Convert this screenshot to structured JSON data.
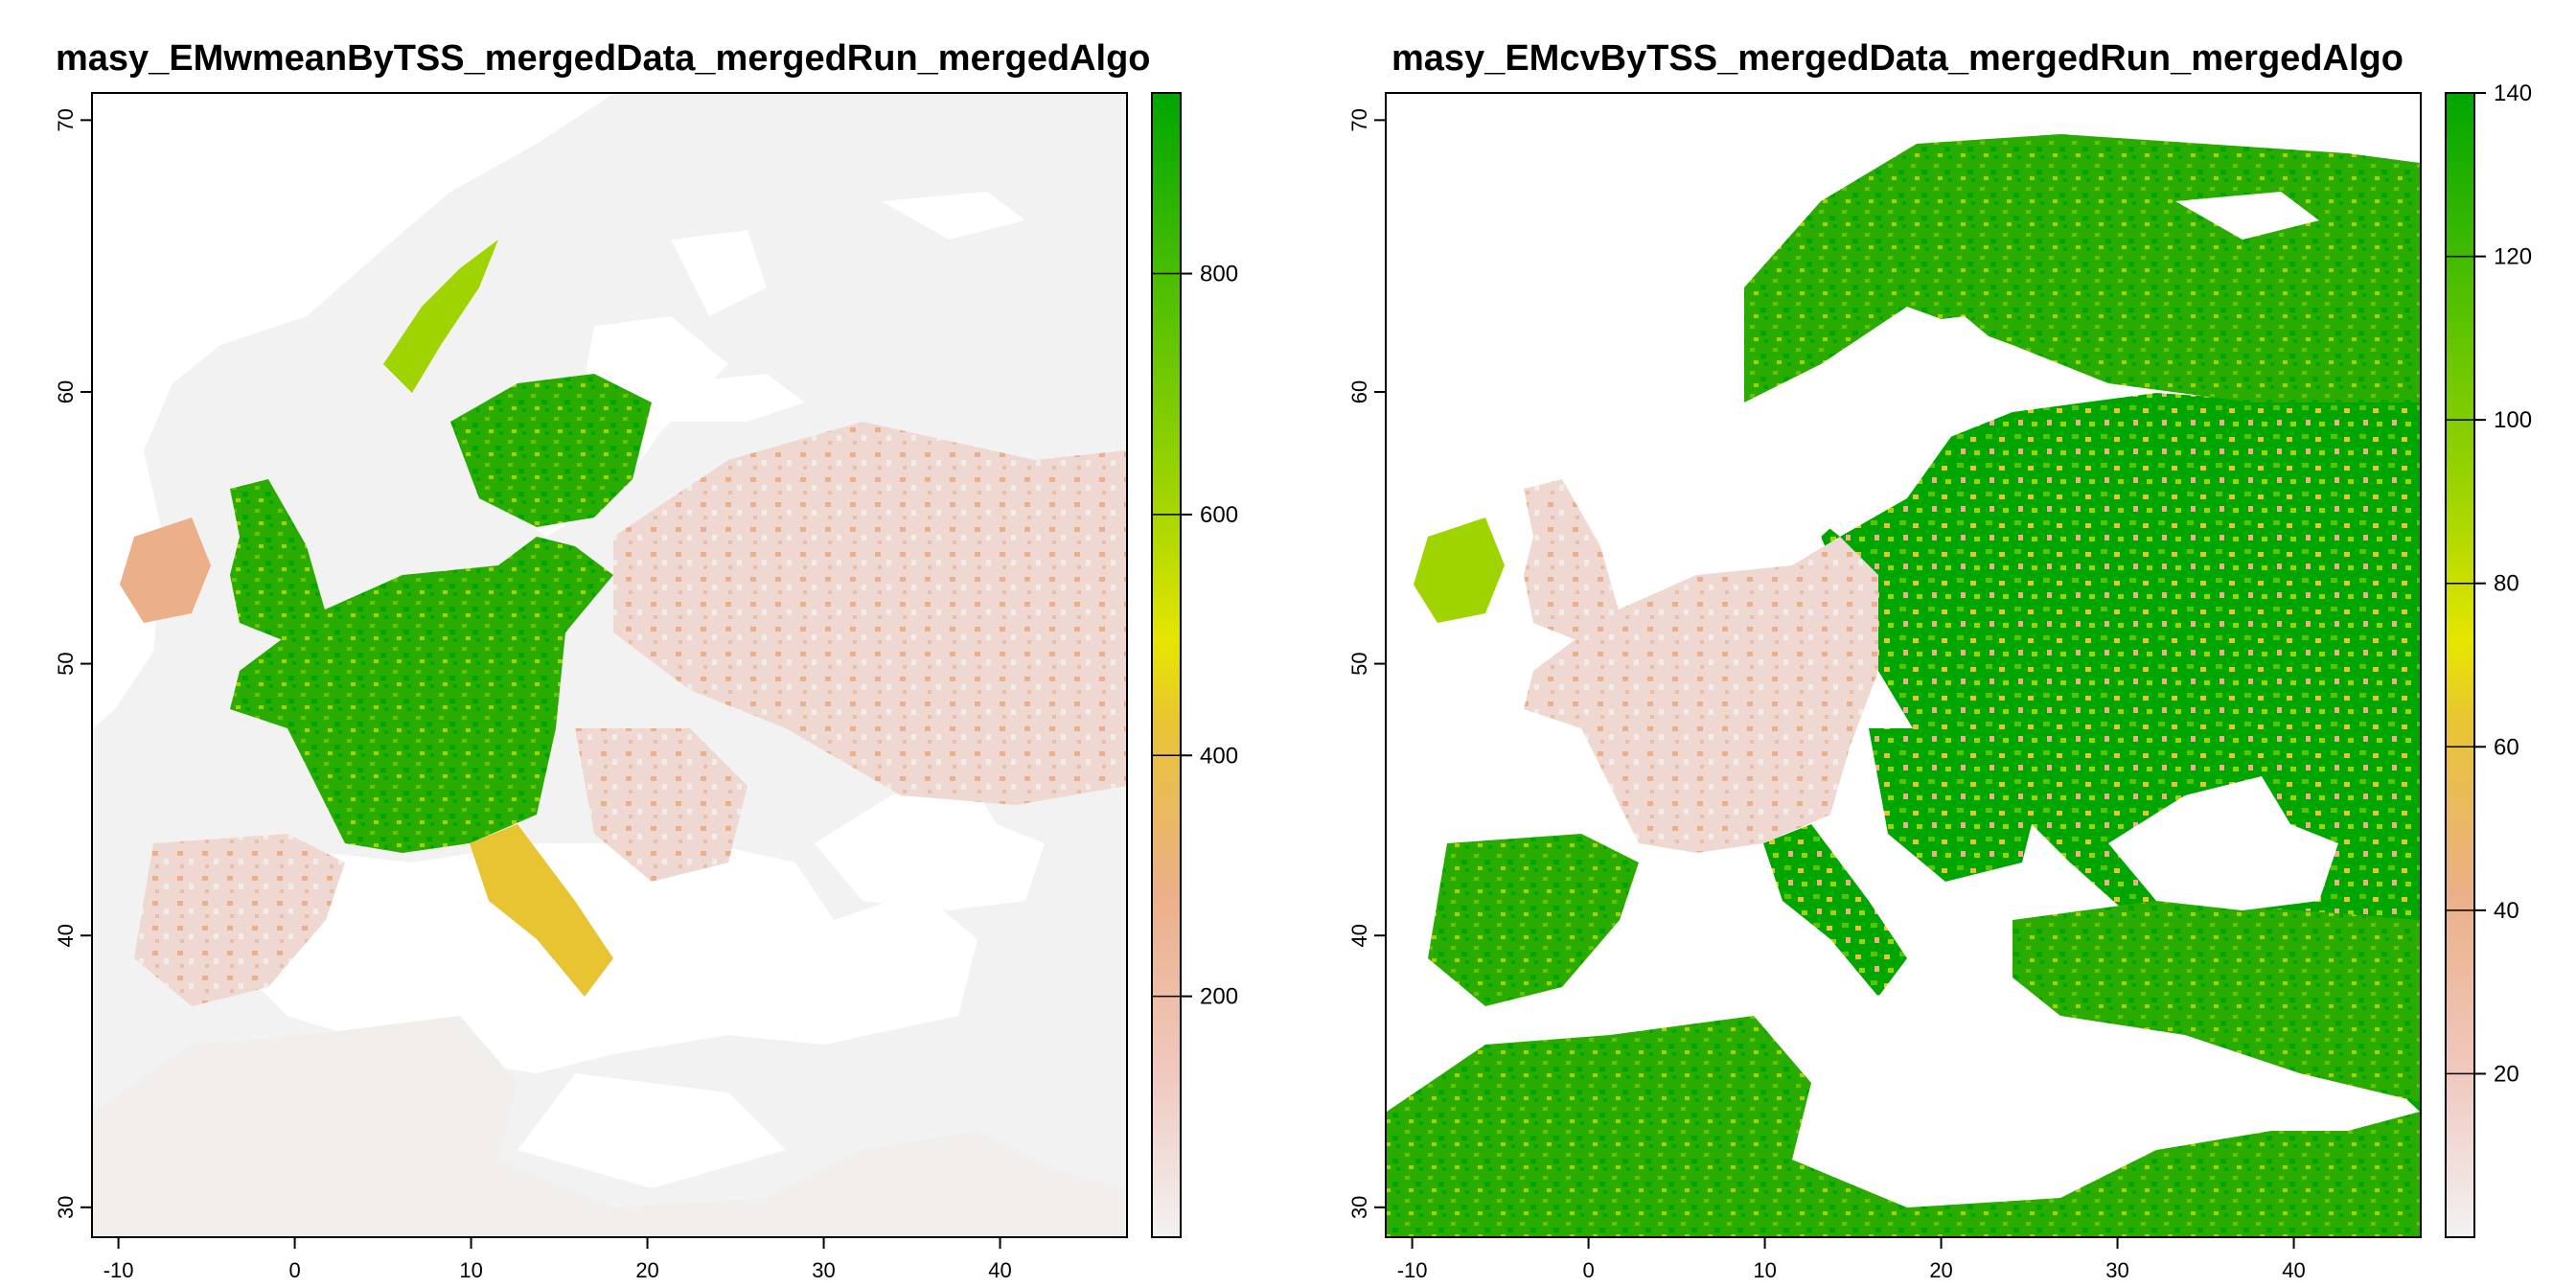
{
  "panels": [
    {
      "title": "masy_EMwmeanByTSS_mergedData_mergedRun_mergedAlgo",
      "x_ticks": [
        -10,
        0,
        10,
        20,
        30,
        40
      ],
      "y_ticks": [
        30,
        40,
        50,
        60,
        70
      ],
      "colorbar": {
        "min": 0,
        "max": 950,
        "ticks": [
          200,
          400,
          600,
          800
        ]
      },
      "colors": [
        "#f2f2f2",
        "#f0c9c0",
        "#ebb089",
        "#e8c433",
        "#e6e600",
        "#9fd400",
        "#5bc300",
        "#00a600"
      ]
    },
    {
      "title": "masy_EMcvByTSS_mergedData_mergedRun_mergedAlgo",
      "x_ticks": [
        -10,
        0,
        10,
        20,
        30,
        40
      ],
      "y_ticks": [
        30,
        40,
        50,
        60,
        70
      ],
      "colorbar": {
        "min": 0,
        "max": 140,
        "ticks": [
          20,
          40,
          60,
          80,
          100,
          120,
          140
        ]
      },
      "colors": [
        "#f2f2f2",
        "#f0c9c0",
        "#ebb089",
        "#e8c433",
        "#e6e600",
        "#9fd400",
        "#5bc300",
        "#00a600"
      ]
    }
  ]
}
